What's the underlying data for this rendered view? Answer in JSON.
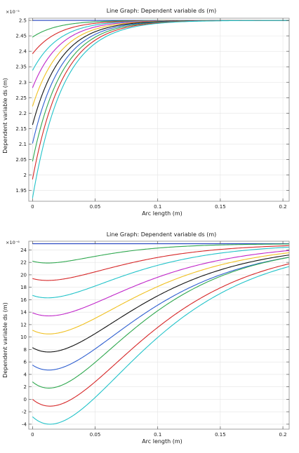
{
  "chart_data": [
    {
      "type": "line",
      "title": "Line Graph: Dependent variable ds (m)",
      "xlabel": "Arc length (m)",
      "ylabel": "Dependent variable ds (m)",
      "y_exponent": "×10⁻⁵",
      "xlim": [
        -0.003,
        0.205
      ],
      "ylim": [
        1.915,
        2.507
      ],
      "x_ticks": [
        0,
        0.05,
        0.1,
        0.15,
        0.2
      ],
      "x_tick_labels": [
        "0",
        "0.05",
        "0.1",
        "0.15",
        "0.2"
      ],
      "y_ticks": [
        1.95,
        2.0,
        2.05,
        2.1,
        2.15,
        2.2,
        2.25,
        2.3,
        2.35,
        2.4,
        2.45,
        2.5
      ],
      "y_tick_labels": [
        "1.95",
        "2",
        "2.05",
        "2.1",
        "2.15",
        "2.2",
        "2.25",
        "2.3",
        "2.35",
        "2.4",
        "2.45",
        "2.5"
      ],
      "grid": true,
      "curve_model": "exponential-approach",
      "asymptote": 2.5,
      "series": [
        {
          "color": "#1f3fbf",
          "start": 2.5,
          "decay": 0.02
        },
        {
          "color": "#2fa84f",
          "start": 2.446,
          "decay": 0.02
        },
        {
          "color": "#d62728",
          "start": 2.392,
          "decay": 0.0205
        },
        {
          "color": "#22c3c9",
          "start": 2.338,
          "decay": 0.021
        },
        {
          "color": "#c026c9",
          "start": 2.282,
          "decay": 0.0215
        },
        {
          "color": "#f0c020",
          "start": 2.222,
          "decay": 0.022
        },
        {
          "color": "#111111",
          "start": 2.162,
          "decay": 0.0225
        },
        {
          "color": "#2f5fd0",
          "start": 2.102,
          "decay": 0.023
        },
        {
          "color": "#2fa84f",
          "start": 2.044,
          "decay": 0.0235
        },
        {
          "color": "#d62728",
          "start": 1.986,
          "decay": 0.024
        },
        {
          "color": "#22c3c9",
          "start": 1.925,
          "decay": 0.0245
        }
      ]
    },
    {
      "type": "line",
      "title": "Line Graph: Dependent variable ds (m)",
      "xlabel": "Arc length (m)",
      "ylabel": "Dependent variable ds (m)",
      "y_exponent": "×10⁻⁶",
      "xlim": [
        -0.003,
        0.205
      ],
      "ylim": [
        -4.8,
        25.4
      ],
      "x_ticks": [
        0,
        0.05,
        0.1,
        0.15,
        0.2
      ],
      "x_tick_labels": [
        "0",
        "0.05",
        "0.1",
        "0.15",
        "0.2"
      ],
      "y_ticks": [
        -4,
        -2,
        0,
        2,
        4,
        6,
        8,
        10,
        12,
        14,
        16,
        18,
        20,
        22,
        24
      ],
      "y_tick_labels": [
        "-4",
        "-2",
        "0",
        "2",
        "4",
        "6",
        "8",
        "10",
        "12",
        "14",
        "16",
        "18",
        "20",
        "22",
        "24"
      ],
      "grid": true,
      "curve_model": "dip-and-recover",
      "asymptote": 25,
      "series": [
        {
          "color": "#1f3fbf",
          "start": 25,
          "minimum": 25,
          "x_min": 0.012
        },
        {
          "color": "#2fa84f",
          "start": 22.2,
          "minimum": 21.9,
          "x_min": 0.012
        },
        {
          "color": "#d62728",
          "start": 19.4,
          "minimum": 19.1,
          "x_min": 0.012
        },
        {
          "color": "#22c3c9",
          "start": 16.7,
          "minimum": 16.3,
          "x_min": 0.012
        },
        {
          "color": "#c026c9",
          "start": 13.9,
          "minimum": 13.4,
          "x_min": 0.013
        },
        {
          "color": "#f0c020",
          "start": 11.1,
          "minimum": 10.5,
          "x_min": 0.013
        },
        {
          "color": "#111111",
          "start": 8.3,
          "minimum": 7.6,
          "x_min": 0.013
        },
        {
          "color": "#2f5fd0",
          "start": 5.5,
          "minimum": 4.7,
          "x_min": 0.013
        },
        {
          "color": "#2fa84f",
          "start": 2.8,
          "minimum": 1.8,
          "x_min": 0.013
        },
        {
          "color": "#d62728",
          "start": 0.0,
          "minimum": -1.1,
          "x_min": 0.014
        },
        {
          "color": "#22c3c9",
          "start": -2.8,
          "minimum": -4.0,
          "x_min": 0.014
        }
      ]
    }
  ]
}
